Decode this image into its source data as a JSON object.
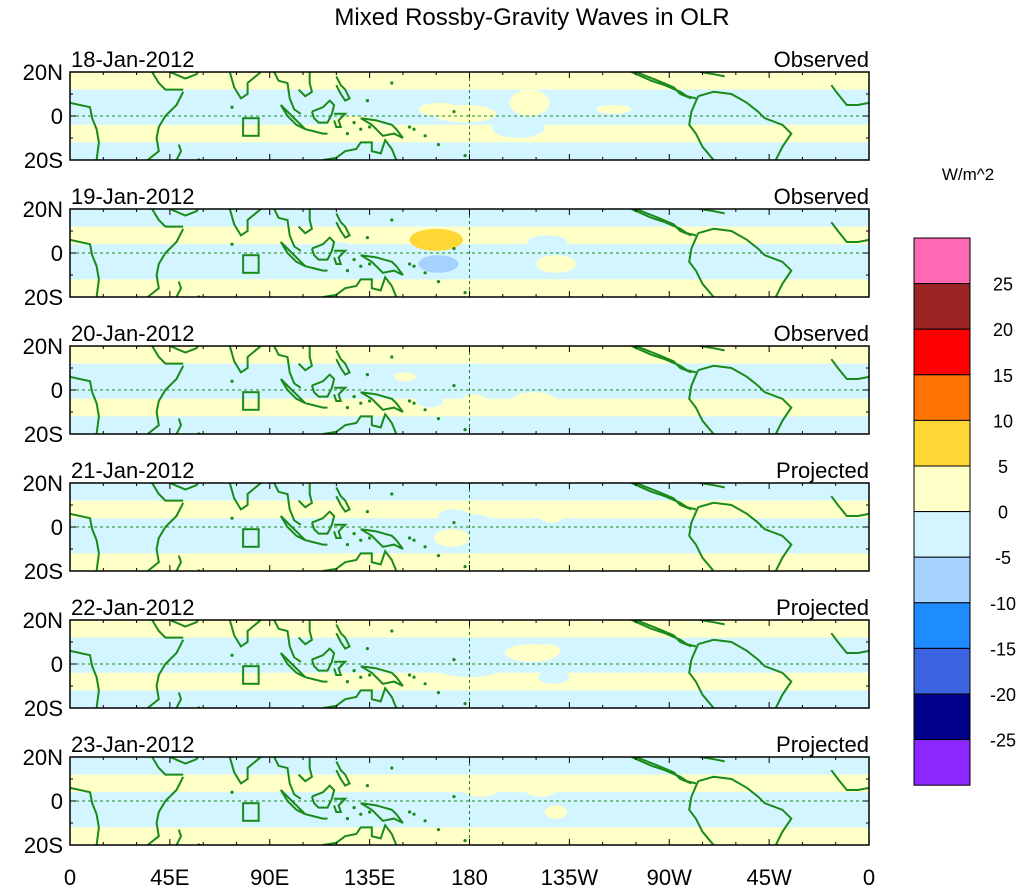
{
  "title": "Mixed Rossby-Gravity Waves in OLR",
  "units_label": "W/m^2",
  "lat_labels": [
    "20N",
    "0",
    "20S"
  ],
  "lon_labels": [
    "0",
    "45E",
    "90E",
    "135E",
    "180",
    "135W",
    "90W",
    "45W",
    "0"
  ],
  "panels": [
    {
      "date": "18-Jan-2012",
      "status": "Observed",
      "anomalies": [
        {
          "lon": 178,
          "lat": 1,
          "rx": 14,
          "ry": 4,
          "value": 2
        },
        {
          "lon": 166,
          "lat": 3,
          "rx": 9,
          "ry": 3,
          "value": 3
        },
        {
          "lon": 207,
          "lat": 6,
          "rx": 9,
          "ry": 6,
          "value": 4
        },
        {
          "lon": 128,
          "lat": -4,
          "rx": 12,
          "ry": 4,
          "value": 3
        },
        {
          "lon": 147,
          "lat": 4,
          "rx": 7,
          "ry": 3,
          "value": -3
        },
        {
          "lon": 202,
          "lat": -5,
          "rx": 12,
          "ry": 5,
          "value": -4
        },
        {
          "lon": 245,
          "lat": 3,
          "rx": 8,
          "ry": 2,
          "value": 2
        }
      ]
    },
    {
      "date": "19-Jan-2012",
      "status": "Observed",
      "anomalies": [
        {
          "lon": 165,
          "lat": 6,
          "rx": 12,
          "ry": 5,
          "value": 6
        },
        {
          "lon": 166,
          "lat": -5,
          "rx": 9,
          "ry": 4,
          "value": -8
        },
        {
          "lon": 119,
          "lat": 3,
          "rx": 8,
          "ry": 2,
          "value": -2
        },
        {
          "lon": 215,
          "lat": 5,
          "rx": 9,
          "ry": 3,
          "value": -3
        },
        {
          "lon": 219,
          "lat": -5,
          "rx": 9,
          "ry": 4,
          "value": 4
        },
        {
          "lon": 193,
          "lat": -2,
          "rx": 8,
          "ry": 2,
          "value": -2
        }
      ]
    },
    {
      "date": "20-Jan-2012",
      "status": "Observed",
      "anomalies": [
        {
          "lon": 195,
          "lat": 2,
          "rx": 16,
          "ry": 4,
          "value": -2
        },
        {
          "lon": 211,
          "lat": 6,
          "rx": 10,
          "ry": 5,
          "value": -4
        },
        {
          "lon": 209,
          "lat": -5,
          "rx": 10,
          "ry": 4,
          "value": 5
        },
        {
          "lon": 162,
          "lat": -5,
          "rx": 6,
          "ry": 3,
          "value": -3
        },
        {
          "lon": 182,
          "lat": -5,
          "rx": 6,
          "ry": 3,
          "value": 3
        },
        {
          "lon": 151,
          "lat": 6,
          "rx": 5,
          "ry": 2,
          "value": 3
        }
      ]
    },
    {
      "date": "21-Jan-2012",
      "status": "Projected",
      "anomalies": [
        {
          "lon": 178,
          "lat": 2,
          "rx": 14,
          "ry": 4,
          "value": -2
        },
        {
          "lon": 173,
          "lat": 5,
          "rx": 7,
          "ry": 3,
          "value": -3
        },
        {
          "lon": 217,
          "lat": 6,
          "rx": 6,
          "ry": 4,
          "value": 4
        },
        {
          "lon": 172,
          "lat": -5,
          "rx": 8,
          "ry": 4,
          "value": 4
        },
        {
          "lon": 217,
          "lat": -5,
          "rx": 6,
          "ry": 3,
          "value": -3
        },
        {
          "lon": 137,
          "lat": -6,
          "rx": 5,
          "ry": 2,
          "value": -2
        }
      ]
    },
    {
      "date": "22-Jan-2012",
      "status": "Projected",
      "anomalies": [
        {
          "lon": 180,
          "lat": -2,
          "rx": 14,
          "ry": 4,
          "value": -2
        },
        {
          "lon": 208,
          "lat": 5,
          "rx": 12,
          "ry": 4,
          "value": 3
        },
        {
          "lon": 215,
          "lat": 6,
          "rx": 6,
          "ry": 3,
          "value": 5
        },
        {
          "lon": 218,
          "lat": -6,
          "rx": 7,
          "ry": 3,
          "value": -3
        },
        {
          "lon": 181,
          "lat": 6,
          "rx": 6,
          "ry": 2,
          "value": -2
        }
      ]
    },
    {
      "date": "23-Jan-2012",
      "status": "Projected",
      "anomalies": [
        {
          "lon": 185,
          "lat": 5,
          "rx": 8,
          "ry": 3,
          "value": 4
        },
        {
          "lon": 212,
          "lat": 5,
          "rx": 7,
          "ry": 3,
          "value": 3
        },
        {
          "lon": 219,
          "lat": -5,
          "rx": 5,
          "ry": 3,
          "value": 4
        },
        {
          "lon": 169,
          "lat": -6,
          "rx": 6,
          "ry": 2,
          "value": -2
        },
        {
          "lon": 195,
          "lat": -4,
          "rx": 10,
          "ry": 3,
          "value": -2
        }
      ]
    }
  ],
  "colorbar": {
    "ticks": [
      "25",
      "20",
      "15",
      "10",
      "5",
      "0",
      "-5",
      "-10",
      "-15",
      "-20",
      "-25"
    ],
    "colors": [
      "#ff69b4",
      "#9b2525",
      "#ff0000",
      "#ff7300",
      "#ffd735",
      "#ffffc8",
      "#d2f5ff",
      "#a5d2ff",
      "#1e8cff",
      "#3c64e1",
      "#00008b",
      "#8c28ff"
    ]
  },
  "colors": {
    "land": "#1a8a1a",
    "dashed": "#1a8a1a",
    "background": "#ffffff"
  }
}
